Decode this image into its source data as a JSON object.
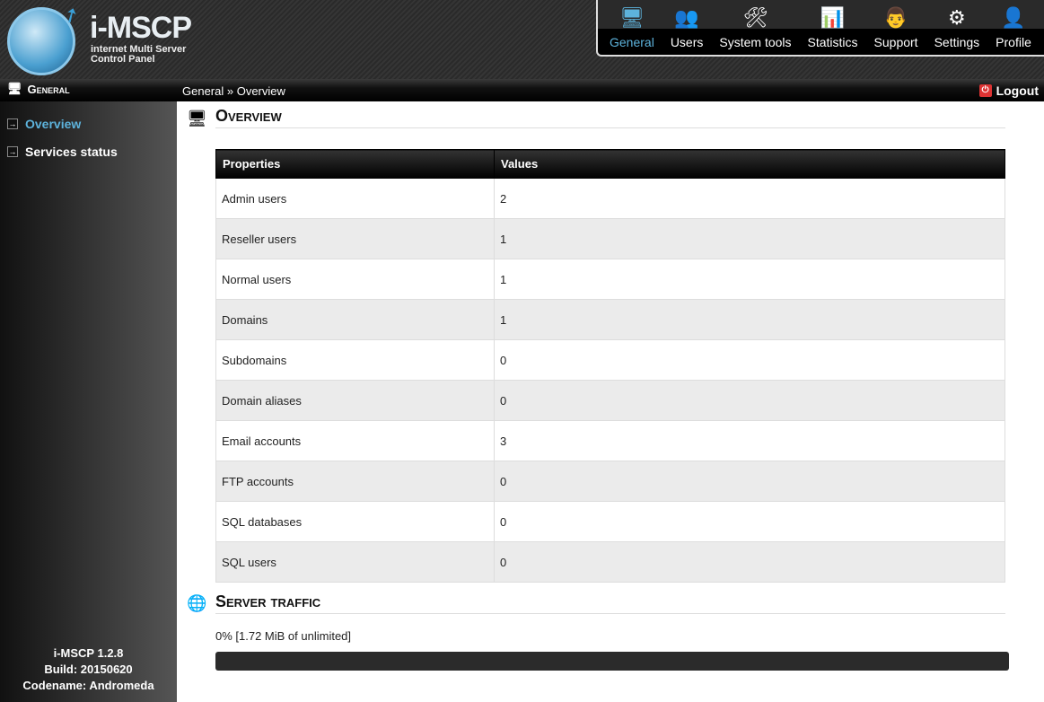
{
  "logo": {
    "title": "i-MSCP",
    "subtitle": "internet Multi Server Control Panel"
  },
  "nav": [
    {
      "label": "General",
      "icon": "monitor-icon"
    },
    {
      "label": "Users",
      "icon": "users-icon"
    },
    {
      "label": "System tools",
      "icon": "tools-icon"
    },
    {
      "label": "Statistics",
      "icon": "statistics-icon"
    },
    {
      "label": "Support",
      "icon": "support-icon"
    },
    {
      "label": "Settings",
      "icon": "gears-icon"
    },
    {
      "label": "Profile",
      "icon": "profile-icon"
    }
  ],
  "section_title": "General",
  "breadcrumb": "General » Overview",
  "logout": "Logout",
  "sidebar": {
    "items": [
      {
        "label": "Overview",
        "active": true
      },
      {
        "label": "Services status",
        "active": false
      }
    ],
    "version": "i-MSCP 1.2.8",
    "build": "Build: 20150620",
    "codename": "Codename: Andromeda"
  },
  "overview": {
    "title": "Overview",
    "headers": [
      "Properties",
      "Values"
    ],
    "rows": [
      [
        "Admin users",
        "2"
      ],
      [
        "Reseller users",
        "1"
      ],
      [
        "Normal users",
        "1"
      ],
      [
        "Domains",
        "1"
      ],
      [
        "Subdomains",
        "0"
      ],
      [
        "Domain aliases",
        "0"
      ],
      [
        "Email accounts",
        "3"
      ],
      [
        "FTP accounts",
        "0"
      ],
      [
        "SQL databases",
        "0"
      ],
      [
        "SQL users",
        "0"
      ]
    ]
  },
  "traffic": {
    "title": "Server traffic",
    "text": "0% [1.72 MiB of unlimited]",
    "percent": 0
  },
  "colors": {
    "accent": "#5db3dc",
    "logout": "#d33333"
  }
}
